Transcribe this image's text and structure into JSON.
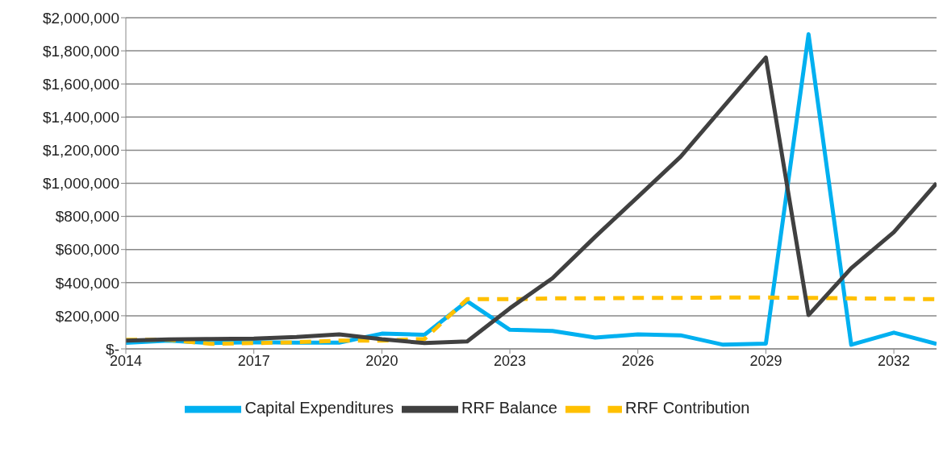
{
  "chart_data": {
    "type": "line",
    "x": [
      2014,
      2015,
      2016,
      2017,
      2018,
      2019,
      2020,
      2021,
      2022,
      2023,
      2024,
      2025,
      2026,
      2027,
      2028,
      2029,
      2030,
      2031,
      2032,
      2033
    ],
    "xlim": [
      2014,
      2033
    ],
    "xticks": [
      2014,
      2017,
      2020,
      2023,
      2026,
      2029,
      2032
    ],
    "ylim": [
      0,
      2000000
    ],
    "yticks": [
      {
        "value": 0,
        "label": "$-"
      },
      {
        "value": 200000,
        "label": "$200,000"
      },
      {
        "value": 400000,
        "label": "$400,000"
      },
      {
        "value": 600000,
        "label": "$600,000"
      },
      {
        "value": 800000,
        "label": "$800,000"
      },
      {
        "value": 1000000,
        "label": "$1,000,000"
      },
      {
        "value": 1200000,
        "label": "$1,200,000"
      },
      {
        "value": 1400000,
        "label": "$1,400,000"
      },
      {
        "value": 1600000,
        "label": "$1,600,000"
      },
      {
        "value": 1800000,
        "label": "$1,800,000"
      },
      {
        "value": 2000000,
        "label": "$2,000,000"
      }
    ],
    "grid": "y",
    "legend": "bottom",
    "marker": "none",
    "series": [
      {
        "name": "Capital Expenditures",
        "color": "#00b0f0",
        "line_style": "solid",
        "values": [
          37000,
          50000,
          35000,
          40000,
          38000,
          38000,
          92000,
          85000,
          288000,
          115000,
          108000,
          68000,
          88000,
          82000,
          25000,
          32000,
          1900000,
          25000,
          98000,
          30000
        ]
      },
      {
        "name": "RRF Contribution",
        "color": "#ffc000",
        "line_style": "dashed",
        "values": [
          55000,
          55000,
          30000,
          35000,
          40000,
          50000,
          50000,
          60000,
          300000,
          300000,
          305000,
          305000,
          308000,
          308000,
          310000,
          310000,
          308000,
          305000,
          303000,
          300000
        ]
      },
      {
        "name": "RRF Balance",
        "color": "#404040",
        "line_style": "solid",
        "values": [
          50000,
          57000,
          60000,
          62000,
          72000,
          88000,
          58000,
          35000,
          45000,
          245000,
          427000,
          677000,
          918000,
          1160000,
          1460000,
          1760000,
          204000,
          487000,
          705000,
          1000000
        ]
      }
    ]
  }
}
